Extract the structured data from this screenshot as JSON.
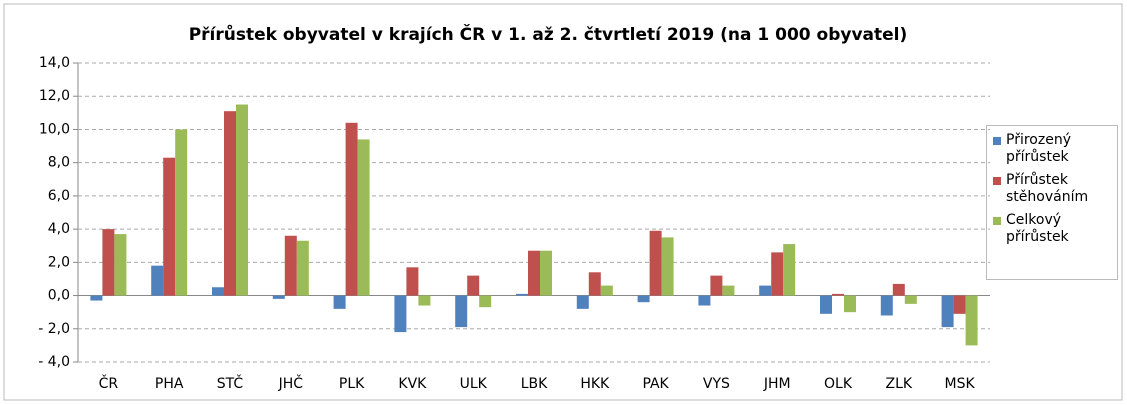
{
  "chart_data": {
    "type": "bar",
    "title": "Přírůstek obyvatel v krajích ČR  v 1. až 2. čtvrtletí 2019 (na 1 000 obyvatel)",
    "categories": [
      "ČR",
      "PHA",
      "STČ",
      "JHČ",
      "PLK",
      "KVK",
      "ULK",
      "LBK",
      "HKK",
      "PAK",
      "VYS",
      "JHM",
      "OLK",
      "ZLK",
      "MSK"
    ],
    "series": [
      {
        "name": "Přirozený přírůstek",
        "color": "#4f81bd",
        "values": [
          -0.3,
          1.8,
          0.5,
          -0.2,
          -0.8,
          -2.2,
          -1.9,
          0.1,
          -0.8,
          -0.4,
          -0.6,
          0.6,
          -1.1,
          -1.2,
          -1.9
        ]
      },
      {
        "name": "Přírůstek stěhováním",
        "color": "#c0504d",
        "values": [
          4.0,
          8.3,
          11.1,
          3.6,
          10.4,
          1.7,
          1.2,
          2.7,
          1.4,
          3.9,
          1.2,
          2.6,
          0.1,
          0.7,
          -1.1
        ]
      },
      {
        "name": "Celkový přírůstek",
        "color": "#9bbb59",
        "values": [
          3.7,
          10.0,
          11.5,
          3.3,
          9.4,
          -0.6,
          -0.7,
          2.7,
          0.6,
          3.5,
          0.6,
          3.1,
          -1.0,
          -0.5,
          -3.0
        ]
      }
    ],
    "ylim": [
      -4,
      14
    ],
    "yticks": [
      {
        "value": -4,
        "label": "- 4,0"
      },
      {
        "value": -2,
        "label": "- 2,0"
      },
      {
        "value": 0,
        "label": "0,0"
      },
      {
        "value": 2,
        "label": "2,0"
      },
      {
        "value": 4,
        "label": "4,0"
      },
      {
        "value": 6,
        "label": "6,0"
      },
      {
        "value": 8,
        "label": "8,0"
      },
      {
        "value": 10,
        "label": "10,0"
      },
      {
        "value": 12,
        "label": "12,0"
      },
      {
        "value": 14,
        "label": "14,0"
      }
    ],
    "grid": true,
    "legend": "right"
  }
}
